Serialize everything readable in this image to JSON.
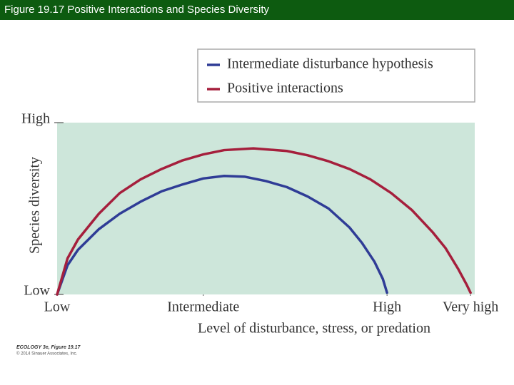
{
  "header": {
    "title": "Figure 19.17  Positive Interactions and Species Diversity"
  },
  "chart_data": {
    "type": "line",
    "x_label": "Level of disturbance, stress, or predation",
    "y_label": "Species diversity",
    "xlim": [
      0,
      10
    ],
    "ylim": [
      0,
      10
    ],
    "xticks": [
      {
        "value": 0,
        "label": "Low"
      },
      {
        "value": 3.5,
        "label": "Intermediate"
      },
      {
        "value": 7.9,
        "label": "High"
      },
      {
        "value": 9.9,
        "label": "Very high"
      }
    ],
    "yticks": [
      {
        "value": 0,
        "label": "Low"
      },
      {
        "value": 10,
        "label": "High"
      }
    ],
    "series": [
      {
        "name": "Intermediate disturbance hypothesis",
        "color": "#2f3c96",
        "x": [
          0,
          0.25,
          0.5,
          1,
          1.5,
          2,
          2.5,
          3,
          3.5,
          4,
          4.5,
          5,
          5.5,
          6,
          6.5,
          7,
          7.3,
          7.6,
          7.8,
          7.9
        ],
        "values": [
          0,
          1.7,
          2.6,
          3.8,
          4.7,
          5.4,
          6.0,
          6.4,
          6.75,
          6.9,
          6.85,
          6.6,
          6.25,
          5.7,
          5.0,
          3.9,
          3.0,
          1.9,
          0.9,
          0.1
        ]
      },
      {
        "name": "Positive interactions",
        "color": "#a51f3c",
        "x": [
          0,
          0.25,
          0.5,
          1,
          1.5,
          2,
          2.5,
          3,
          3.5,
          4,
          4.7,
          5.5,
          6,
          6.5,
          7,
          7.5,
          8,
          8.5,
          9,
          9.3,
          9.6,
          9.8,
          9.9
        ],
        "values": [
          0,
          2.1,
          3.2,
          4.7,
          5.9,
          6.7,
          7.3,
          7.8,
          8.15,
          8.4,
          8.5,
          8.35,
          8.1,
          7.75,
          7.3,
          6.7,
          5.9,
          4.9,
          3.6,
          2.7,
          1.5,
          0.6,
          0.1
        ]
      }
    ]
  },
  "credit": {
    "book": "ECOLOGY 3e, Figure 19.17",
    "copyright": "© 2014 Sinauer Associates, Inc."
  }
}
